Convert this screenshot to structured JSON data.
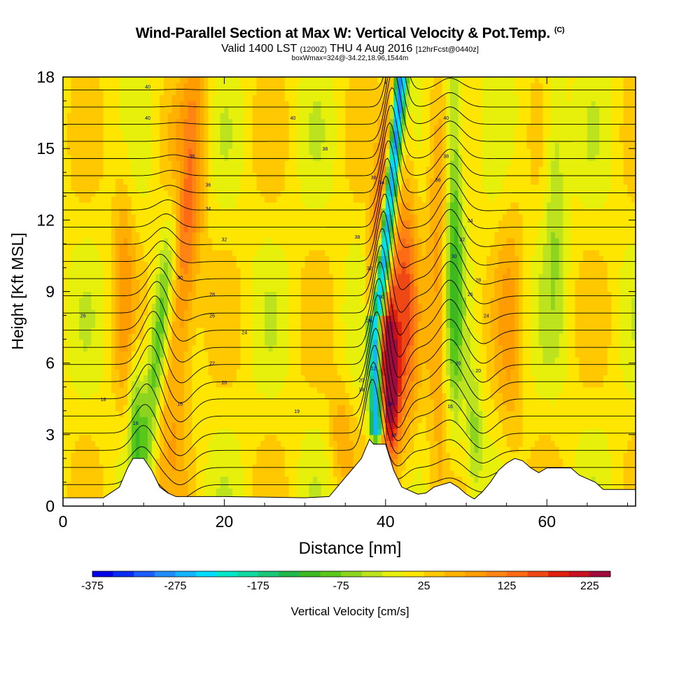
{
  "title": {
    "main": "Wind-Parallel Section at Max W: Vertical Velocity & Pot.Temp.",
    "copyright": "(C)",
    "valid_prefix": "Valid 1400 LST",
    "valid_utc": "(1200Z)",
    "valid_date": "THU 4 Aug 2016",
    "forecast": "[12hrFcst@0440z]",
    "box_info": "boxWmax=324@-34.22,18.96,1544m"
  },
  "chart_data": {
    "type": "heatmap",
    "xlabel": "Distance [nm]",
    "ylabel": "Height [Kft MSL]",
    "xlim": [
      0,
      71
    ],
    "ylim": [
      0,
      18
    ],
    "x_ticks": [
      "0",
      "20",
      "40",
      "60"
    ],
    "y_ticks": [
      "0",
      "3",
      "6",
      "9",
      "12",
      "15",
      "18"
    ],
    "colorbar": {
      "label": "Vertical Velocity [cm/s]",
      "tick_labels": [
        "-375",
        "-275",
        "-175",
        "-75",
        "25",
        "125",
        "225"
      ],
      "colors": [
        "#0000e6",
        "#0a2cf0",
        "#1a5cff",
        "#1f8cff",
        "#15b4ff",
        "#00dcff",
        "#00e8c8",
        "#10d8a0",
        "#18c878",
        "#1fb84a",
        "#3cb820",
        "#5ac81a",
        "#8cd41e",
        "#bce31d",
        "#e6f00a",
        "#ffe600",
        "#ffc800",
        "#ffb000",
        "#ff9c00",
        "#ff8414",
        "#ff6a14",
        "#f04814",
        "#e0200f",
        "#c8101e",
        "#a00a3c"
      ]
    },
    "terrain": [
      [
        0,
        0.35
      ],
      [
        5,
        0.35
      ],
      [
        7,
        0.8
      ],
      [
        8,
        1.6
      ],
      [
        8.7,
        2.0
      ],
      [
        10,
        2.0
      ],
      [
        11,
        1.5
      ],
      [
        12,
        0.8
      ],
      [
        13,
        0.55
      ],
      [
        14,
        0.4
      ],
      [
        20,
        0.4
      ],
      [
        30,
        0.35
      ],
      [
        33,
        0.4
      ],
      [
        34,
        0.8
      ],
      [
        35,
        1.2
      ],
      [
        36,
        1.6
      ],
      [
        37,
        2.0
      ],
      [
        38,
        2.8
      ],
      [
        38.5,
        2.6
      ],
      [
        40,
        2.6
      ],
      [
        41,
        1.5
      ],
      [
        42,
        0.8
      ],
      [
        44,
        0.5
      ],
      [
        45,
        0.55
      ],
      [
        46,
        0.8
      ],
      [
        48,
        1.0
      ],
      [
        49,
        0.8
      ],
      [
        50,
        0.5
      ],
      [
        51,
        0.3
      ],
      [
        52,
        0.6
      ],
      [
        53,
        1.0
      ],
      [
        54,
        1.5
      ],
      [
        55,
        1.8
      ],
      [
        56,
        2.0
      ],
      [
        57,
        1.9
      ],
      [
        58,
        1.6
      ],
      [
        59,
        1.4
      ],
      [
        60,
        1.6
      ],
      [
        63,
        1.6
      ],
      [
        64,
        1.3
      ],
      [
        66,
        1.0
      ],
      [
        67,
        0.7
      ],
      [
        71,
        0.7
      ]
    ],
    "theta_contour_labels": [
      {
        "x": 9,
        "y": 3.5,
        "label": "18"
      },
      {
        "x": 5,
        "y": 4.5,
        "label": "18"
      },
      {
        "x": 14.5,
        "y": 4.3,
        "label": "16"
      },
      {
        "x": 29,
        "y": 4.0,
        "label": "19"
      },
      {
        "x": 20,
        "y": 5.2,
        "label": "20"
      },
      {
        "x": 18.5,
        "y": 6.0,
        "label": "22"
      },
      {
        "x": 22.5,
        "y": 7.3,
        "label": "24"
      },
      {
        "x": 18.5,
        "y": 8.0,
        "label": "26"
      },
      {
        "x": 2.5,
        "y": 8.0,
        "label": "26"
      },
      {
        "x": 18.5,
        "y": 8.9,
        "label": "28"
      },
      {
        "x": 14.5,
        "y": 9.6,
        "label": "30"
      },
      {
        "x": 20,
        "y": 11.2,
        "label": "32"
      },
      {
        "x": 18,
        "y": 12.5,
        "label": "34"
      },
      {
        "x": 18,
        "y": 13.5,
        "label": "36"
      },
      {
        "x": 16,
        "y": 14.7,
        "label": "38"
      },
      {
        "x": 10.5,
        "y": 16.3,
        "label": "40"
      },
      {
        "x": 28.5,
        "y": 16.3,
        "label": "40"
      },
      {
        "x": 10.5,
        "y": 17.6,
        "label": "40"
      },
      {
        "x": 32.5,
        "y": 15.0,
        "label": "38"
      },
      {
        "x": 36.5,
        "y": 11.3,
        "label": "38"
      },
      {
        "x": 38.5,
        "y": 13.8,
        "label": "38"
      },
      {
        "x": 39.5,
        "y": 13.6,
        "label": "34"
      },
      {
        "x": 38,
        "y": 10.0,
        "label": "32"
      },
      {
        "x": 39.5,
        "y": 8.8,
        "label": "30"
      },
      {
        "x": 38,
        "y": 7.8,
        "label": "26"
      },
      {
        "x": 38.5,
        "y": 5.8,
        "label": "12"
      },
      {
        "x": 37,
        "y": 5.3,
        "label": "20"
      },
      {
        "x": 37,
        "y": 4.9,
        "label": "18"
      },
      {
        "x": 40.5,
        "y": 4.3,
        "label": "18"
      },
      {
        "x": 41,
        "y": 3.0,
        "label": "18"
      },
      {
        "x": 47.5,
        "y": 16.3,
        "label": "40"
      },
      {
        "x": 47.5,
        "y": 14.7,
        "label": "38"
      },
      {
        "x": 46.5,
        "y": 13.7,
        "label": "36"
      },
      {
        "x": 50.5,
        "y": 12.0,
        "label": "34"
      },
      {
        "x": 49.5,
        "y": 11.2,
        "label": "32"
      },
      {
        "x": 48.5,
        "y": 10.5,
        "label": "30"
      },
      {
        "x": 51.5,
        "y": 9.5,
        "label": "28"
      },
      {
        "x": 50.5,
        "y": 8.9,
        "label": "26"
      },
      {
        "x": 52.5,
        "y": 8.0,
        "label": "24"
      },
      {
        "x": 49,
        "y": 6.0,
        "label": "20"
      },
      {
        "x": 51.5,
        "y": 5.7,
        "label": "20"
      },
      {
        "x": 48,
        "y": 4.2,
        "label": "16"
      }
    ]
  }
}
